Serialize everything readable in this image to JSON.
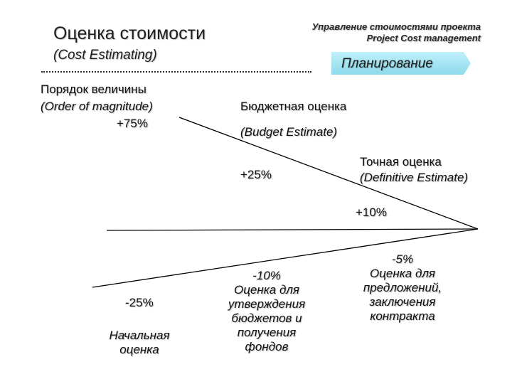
{
  "title_ru": "Оценка стоимости",
  "title_en": "(Cost Estimating)",
  "header_ru": "Управление стоимостями проекта",
  "header_en": "Project Cost management",
  "phase_label": "Планирование",
  "order_magnitude": {
    "ru": "Порядок величины",
    "en": "(Order of magnitude)",
    "upper": "+75%",
    "lower": "-25%",
    "caption": [
      "Начальная",
      "оценка"
    ]
  },
  "budget_estimate": {
    "ru": "Бюджетная оценка",
    "en": "(Budget Estimate)",
    "upper": "+25%",
    "lower": "-10%",
    "caption": [
      "Оценка для",
      "утверждения",
      "бюджетов и",
      "получения",
      "фондов"
    ]
  },
  "definitive_estimate": {
    "ru": "Точная оценка",
    "en": "(Definitive Estimate)",
    "upper": "+10%",
    "lower": "-5%",
    "caption": [
      "Оценка для",
      "предложений,",
      "заключения",
      "контракта"
    ]
  },
  "colors": {
    "phase_arrow": "#a8e8f4",
    "line": "#000000"
  }
}
